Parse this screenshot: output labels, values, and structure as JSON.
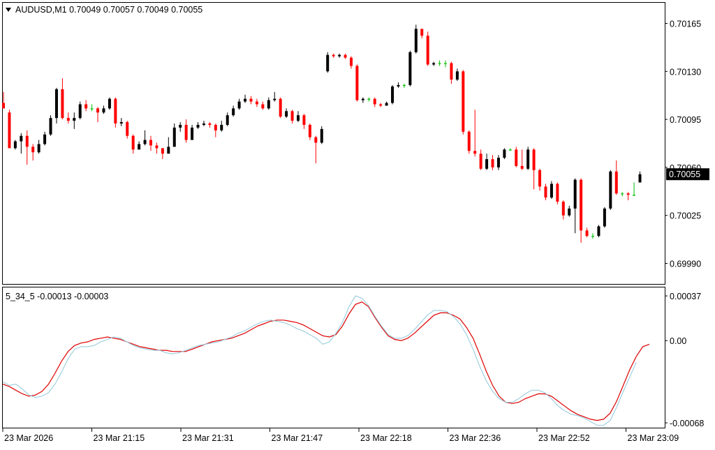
{
  "main_panel": {
    "symbol_info": "AUDUSD,M1  0.70049 0.70057 0.70049 0.70055",
    "y_ticks": [
      "0.70165",
      "0.70130",
      "0.70095",
      "0.70060",
      "0.70025",
      "0.69990"
    ],
    "price_label": "0.70055"
  },
  "indicator_panel": {
    "title": "5_34_5 -0.00013 -0.00003",
    "y_ticks": [
      "0.00037",
      "0.00",
      "-0.00068"
    ]
  },
  "x_ticks": [
    "23 Mar 2026",
    "23 Mar 21:15",
    "23 Mar 21:31",
    "23 Mar 21:47",
    "23 Mar 22:18",
    "23 Mar 22:36",
    "23 Mar 22:52",
    "23 Mar 23:09"
  ],
  "colors": {
    "bull": "#000000",
    "bear": "#ff0000",
    "doji": "#00c000",
    "main_line": "#dd0000",
    "signal_line": "#99ccdd"
  },
  "chart_data": [
    {
      "type": "candlestick",
      "title": "AUDUSD,M1",
      "ylim": [
        0.69975,
        0.7018
      ],
      "candles": [
        [
          0.70107,
          0.70103,
          0.70115,
          0.70103
        ],
        [
          0.701,
          0.70074,
          0.70102,
          0.70074
        ],
        [
          0.70074,
          0.70079,
          0.7008,
          0.70073
        ],
        [
          0.70079,
          0.70083,
          0.70085,
          0.7007
        ],
        [
          0.70083,
          0.70075,
          0.70087,
          0.70062
        ],
        [
          0.70075,
          0.70071,
          0.70077,
          0.70065
        ],
        [
          0.70071,
          0.70077,
          0.7008,
          0.7007
        ],
        [
          0.70077,
          0.70084,
          0.70086,
          0.70076
        ],
        [
          0.70084,
          0.70096,
          0.70098,
          0.70083
        ],
        [
          0.70096,
          0.70117,
          0.70118,
          0.70092
        ],
        [
          0.70117,
          0.70096,
          0.70125,
          0.70095
        ],
        [
          0.70096,
          0.70094,
          0.701,
          0.70092
        ],
        [
          0.70094,
          0.70096,
          0.701,
          0.70088
        ],
        [
          0.70096,
          0.70106,
          0.70108,
          0.70095
        ],
        [
          0.70106,
          0.70103,
          0.70109,
          0.70101
        ],
        [
          0.70103,
          0.70103,
          0.70106,
          0.70101
        ],
        [
          0.70103,
          0.701,
          0.70104,
          0.70093
        ],
        [
          0.701,
          0.70103,
          0.70105,
          0.70099
        ],
        [
          0.70103,
          0.7011,
          0.70111,
          0.70102
        ],
        [
          0.7011,
          0.70092,
          0.70111,
          0.70089
        ],
        [
          0.70092,
          0.70093,
          0.70096,
          0.7009
        ],
        [
          0.70093,
          0.70083,
          0.70094,
          0.70081
        ],
        [
          0.70083,
          0.70073,
          0.70084,
          0.7007
        ],
        [
          0.70073,
          0.70077,
          0.70079,
          0.70074
        ],
        [
          0.70077,
          0.7008,
          0.70087,
          0.70076
        ],
        [
          0.7008,
          0.70076,
          0.70083,
          0.70072
        ],
        [
          0.70076,
          0.70074,
          0.70078,
          0.7007
        ],
        [
          0.70074,
          0.7007,
          0.70073,
          0.70066
        ],
        [
          0.7007,
          0.70075,
          0.70082,
          0.70071
        ],
        [
          0.70075,
          0.70089,
          0.70092,
          0.70075
        ],
        [
          0.70089,
          0.70091,
          0.70093,
          0.70086
        ],
        [
          0.70091,
          0.7008,
          0.70095,
          0.70078
        ],
        [
          0.7008,
          0.70089,
          0.70091,
          0.7008
        ],
        [
          0.70089,
          0.70091,
          0.70093,
          0.70088
        ],
        [
          0.70091,
          0.70092,
          0.70094,
          0.7009
        ],
        [
          0.70092,
          0.70091,
          0.70093,
          0.70089
        ],
        [
          0.70091,
          0.70087,
          0.70092,
          0.70082
        ],
        [
          0.70087,
          0.70091,
          0.70094,
          0.70086
        ],
        [
          0.70091,
          0.70098,
          0.701,
          0.7009
        ],
        [
          0.70098,
          0.70103,
          0.70105,
          0.70097
        ],
        [
          0.70103,
          0.70108,
          0.7011,
          0.70102
        ],
        [
          0.70108,
          0.7011,
          0.70113,
          0.70107
        ],
        [
          0.7011,
          0.70108,
          0.70112,
          0.70106
        ],
        [
          0.70108,
          0.70106,
          0.7011,
          0.70104
        ],
        [
          0.70106,
          0.70103,
          0.70108,
          0.70102
        ],
        [
          0.70103,
          0.70109,
          0.70111,
          0.70102
        ],
        [
          0.70109,
          0.7011,
          0.70115,
          0.70108
        ],
        [
          0.7011,
          0.70097,
          0.70111,
          0.70096
        ],
        [
          0.70097,
          0.70101,
          0.70103,
          0.70096
        ],
        [
          0.70101,
          0.70094,
          0.70102,
          0.70092
        ],
        [
          0.70094,
          0.70098,
          0.70101,
          0.70093
        ],
        [
          0.70098,
          0.70091,
          0.70099,
          0.70088
        ],
        [
          0.70091,
          0.70082,
          0.70092,
          0.7008
        ],
        [
          0.70082,
          0.70078,
          0.70083,
          0.70063
        ],
        [
          0.70078,
          0.70088,
          0.7009,
          0.70077
        ],
        [
          0.7013,
          0.70142,
          0.70144,
          0.70129
        ],
        [
          0.70142,
          0.70141,
          0.70143,
          0.7014
        ],
        [
          0.70141,
          0.70142,
          0.70143,
          0.7014
        ],
        [
          0.70142,
          0.7014,
          0.70143,
          0.70139
        ],
        [
          0.7014,
          0.70134,
          0.70141,
          0.70132
        ],
        [
          0.70134,
          0.70109,
          0.70135,
          0.70108
        ],
        [
          0.70109,
          0.7011,
          0.70111,
          0.70107
        ],
        [
          0.7011,
          0.7011,
          0.70111,
          0.70108
        ],
        [
          0.7011,
          0.70106,
          0.70111,
          0.70104
        ],
        [
          0.70106,
          0.70105,
          0.70107,
          0.70104
        ],
        [
          0.70105,
          0.70107,
          0.70108,
          0.70105
        ],
        [
          0.70107,
          0.70119,
          0.7012,
          0.70106
        ],
        [
          0.70119,
          0.7012,
          0.70122,
          0.70118
        ],
        [
          0.7012,
          0.7012,
          0.70121,
          0.70118
        ],
        [
          0.7012,
          0.70144,
          0.70145,
          0.70119
        ],
        [
          0.70144,
          0.70161,
          0.70164,
          0.70143
        ],
        [
          0.70161,
          0.70156,
          0.70158,
          0.70154
        ],
        [
          0.70156,
          0.70135,
          0.70159,
          0.70134
        ],
        [
          0.70135,
          0.70136,
          0.70137,
          0.70134
        ],
        [
          0.70136,
          0.70136,
          0.70138,
          0.70134
        ],
        [
          0.70136,
          0.70136,
          0.70138,
          0.70133
        ],
        [
          0.70136,
          0.70124,
          0.70137,
          0.70121
        ],
        [
          0.70124,
          0.7013,
          0.70132,
          0.70123
        ],
        [
          0.7013,
          0.70086,
          0.70131,
          0.70084
        ],
        [
          0.70086,
          0.70072,
          0.70087,
          0.7007
        ],
        [
          0.70072,
          0.7007,
          0.70102,
          0.70068
        ],
        [
          0.7007,
          0.70059,
          0.70073,
          0.70058
        ],
        [
          0.70059,
          0.70066,
          0.7007,
          0.70058
        ],
        [
          0.70066,
          0.7006,
          0.70069,
          0.70058
        ],
        [
          0.7006,
          0.70067,
          0.70069,
          0.70058
        ],
        [
          0.70067,
          0.70073,
          0.70074,
          0.70066
        ],
        [
          0.70073,
          0.70073,
          0.70074,
          0.70072
        ],
        [
          0.70073,
          0.70061,
          0.70075,
          0.7006
        ],
        [
          0.70061,
          0.70059,
          0.70073,
          0.70058
        ],
        [
          0.70059,
          0.70073,
          0.70075,
          0.70058
        ],
        [
          0.70073,
          0.70058,
          0.70074,
          0.70044
        ],
        [
          0.70058,
          0.70046,
          0.70059,
          0.70043
        ],
        [
          0.70046,
          0.70038,
          0.70048,
          0.70036
        ],
        [
          0.70038,
          0.70048,
          0.7005,
          0.70037
        ],
        [
          0.70048,
          0.70035,
          0.70049,
          0.70033
        ],
        [
          0.70035,
          0.70025,
          0.70036,
          0.70022
        ],
        [
          0.70025,
          0.7003,
          0.70032,
          0.70024
        ],
        [
          0.7003,
          0.70051,
          0.70052,
          0.70012
        ],
        [
          0.70051,
          0.70014,
          0.70052,
          0.70005
        ],
        [
          0.70014,
          0.7001,
          0.70016,
          0.70009
        ],
        [
          0.7001,
          0.7001,
          0.70012,
          0.70008
        ],
        [
          0.7001,
          0.70017,
          0.70018,
          0.70009
        ],
        [
          0.70017,
          0.7003,
          0.70031,
          0.70016
        ],
        [
          0.7003,
          0.70057,
          0.70058,
          0.70029
        ],
        [
          0.70057,
          0.70041,
          0.70065,
          0.7004
        ],
        [
          0.70041,
          0.70041,
          0.70042,
          0.70039
        ],
        [
          0.70041,
          0.7004,
          0.70042,
          0.70036
        ],
        [
          0.7004,
          0.7004,
          0.70049,
          0.70039
        ],
        [
          0.70049,
          0.70055,
          0.70057,
          0.70049
        ]
      ]
    },
    {
      "type": "line",
      "title": "5_34_5",
      "ylim": [
        -0.00072,
        0.00044
      ],
      "x_count": 110,
      "series": [
        {
          "values": [
            -0.00036,
            -0.00038,
            -0.00041,
            -0.00044,
            -0.00046,
            -0.00045,
            -0.00042,
            -0.00036,
            -0.00027,
            -0.00017,
            -9e-05,
            -4e-05,
            -2e-05,
            -1e-05,
            1e-05,
            2e-05,
            3e-05,
            2e-05,
            1e-05,
            -1e-05,
            -3e-05,
            -5e-05,
            -6e-05,
            -7e-05,
            -8e-05,
            -8e-05,
            -9e-05,
            -9e-05,
            -9e-05,
            -7e-05,
            -5e-05,
            -3e-05,
            -1e-05,
            0.0,
            1e-05,
            2e-05,
            4e-05,
            6e-05,
            9e-05,
            0.00012,
            0.00014,
            0.00016,
            0.00017,
            0.00017,
            0.00016,
            0.00015,
            0.00013,
            0.0001,
            7e-05,
            4e-05,
            3e-05,
            5e-05,
            0.00012,
            0.00022,
            0.0003,
            0.00032,
            0.00028,
            0.00019,
            0.00011,
            4e-05,
            1e-05,
            0.0,
            2e-05,
            6e-05,
            0.00011,
            0.00016,
            0.00021,
            0.00023,
            0.00023,
            0.00021,
            0.00018,
            0.00011,
            2e-05,
            -0.00011,
            -0.00025,
            -0.00037,
            -0.00046,
            -0.00051,
            -0.00052,
            -0.00051,
            -0.00048,
            -0.00046,
            -0.00044,
            -0.00044,
            -0.00046,
            -0.0005,
            -0.00054,
            -0.00058,
            -0.00061,
            -0.00063,
            -0.00065,
            -0.00066,
            -0.00065,
            -0.0006,
            -0.0005,
            -0.00037,
            -0.00024,
            -0.00013,
            -5e-05,
            -3e-05
          ],
          "color": "main_line"
        },
        {
          "values": [
            -0.00034,
            -0.00037,
            -0.00036,
            -0.0004,
            -0.00045,
            -0.00047,
            -0.00046,
            -0.00043,
            -0.00036,
            -0.00026,
            -0.00015,
            -7e-05,
            -5e-05,
            -5e-05,
            -4e-05,
            -1e-05,
            1e-05,
            3e-05,
            2e-05,
            -1e-05,
            -4e-05,
            -6e-05,
            -7e-05,
            -8e-05,
            -8e-05,
            -0.0001,
            -0.00011,
            -0.0001,
            -8e-05,
            -6e-05,
            -4e-05,
            -3e-05,
            -2e-05,
            -1e-05,
            1e-05,
            3e-05,
            6e-05,
            8e-05,
            0.00011,
            0.00014,
            0.00016,
            0.00017,
            0.00016,
            0.00015,
            0.00013,
            0.0001,
            8e-05,
            5e-05,
            2e-05,
            -3e-05,
            -1e-05,
            6e-05,
            0.00015,
            0.00028,
            0.00037,
            0.00035,
            0.00029,
            0.0002,
            0.00012,
            5e-05,
            2e-05,
            2e-05,
            4e-05,
            9e-05,
            0.00015,
            0.00021,
            0.00025,
            0.00025,
            0.00024,
            0.0002,
            0.00014,
            5e-05,
            -7e-05,
            -0.00021,
            -0.00033,
            -0.00042,
            -0.00048,
            -0.00051,
            -0.00051,
            -0.00048,
            -0.00044,
            -0.00041,
            -0.00041,
            -0.00043,
            -0.00048,
            -0.00054,
            -0.00058,
            -0.00061,
            -0.00062,
            -0.00064,
            -0.00067,
            -0.0007,
            -0.0007,
            -0.00066,
            -0.00055,
            -0.00042,
            -0.0003,
            -0.00018
          ],
          "color": "signal_line"
        }
      ]
    }
  ]
}
